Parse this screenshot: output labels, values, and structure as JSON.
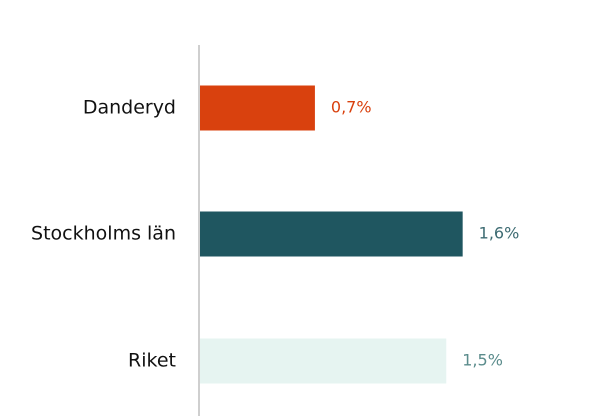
{
  "chart_data": {
    "type": "barh",
    "categories": [
      "Danderyd",
      "Stockholms län",
      "Riket"
    ],
    "values": [
      0.7,
      1.6,
      1.5
    ],
    "value_labels": [
      "0,7%",
      "1,6%",
      "1,5%"
    ],
    "colors": [
      "#d9410e",
      "#1f5660",
      "#e6f4f1"
    ],
    "label_colors": [
      "#d9410e",
      "#3d6b72",
      "#5b8c8c"
    ],
    "xlim": [
      0,
      2.4
    ]
  }
}
